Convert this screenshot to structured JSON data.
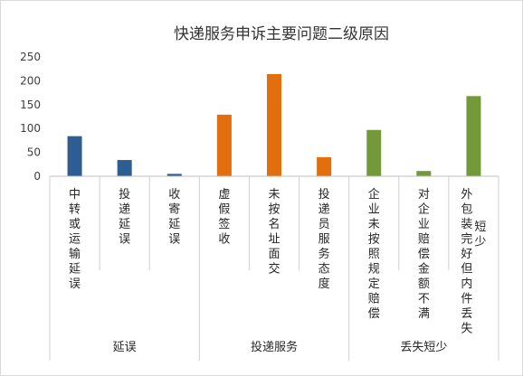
{
  "chart_data": {
    "type": "bar",
    "title": "快递服务申诉主要问题二级原因",
    "ylim": [
      0,
      250
    ],
    "yticks": [
      0,
      50,
      100,
      150,
      200,
      250
    ],
    "grid": false,
    "legend": "none",
    "categories": [
      "中转或运输延误",
      "投递延误",
      "收寄延误",
      "虚假签收",
      "未按名址面交",
      "投递员服务态度",
      "企业未按照规定赔偿",
      "对企业赔偿金额不满",
      "外包装完好但内件丢失短少"
    ],
    "values": [
      84,
      34,
      5,
      129,
      214,
      40,
      97,
      11,
      168
    ],
    "groups": [
      {
        "label": "延误",
        "start": 0,
        "count": 3,
        "color": "#2E5D91"
      },
      {
        "label": "投递服务",
        "start": 3,
        "count": 3,
        "color": "#E26E0D"
      },
      {
        "label": "丢失短少",
        "start": 6,
        "count": 3,
        "color": "#74993A"
      }
    ],
    "label_columns": [
      [
        "中转或运输延误"
      ],
      [
        "投递延误"
      ],
      [
        "收寄延误"
      ],
      [
        "虚假签收"
      ],
      [
        "未按名址面交"
      ],
      [
        "投递员服务态度"
      ],
      [
        "企业未按照规定赔偿"
      ],
      [
        "对企业赔偿金额不满"
      ],
      [
        "外包装完好但内件丢失",
        "短少"
      ]
    ]
  }
}
